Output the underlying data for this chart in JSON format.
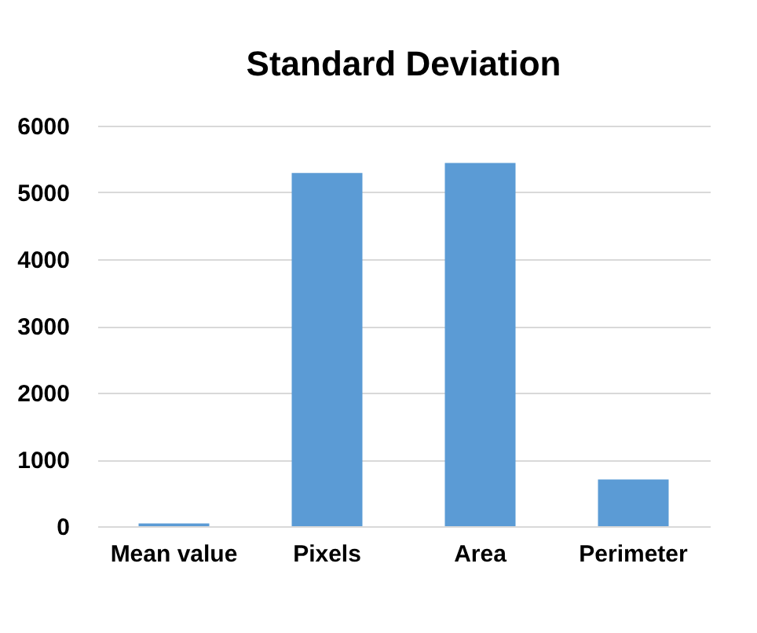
{
  "chart_data": {
    "type": "bar",
    "title": "Standard Deviation",
    "categories": [
      "Mean value",
      "Pixels",
      "Area",
      "Perimeter"
    ],
    "values": [
      40,
      5290,
      5440,
      700
    ],
    "color": "#5b9bd5",
    "ylim": [
      0,
      6000
    ],
    "yticks": [
      0,
      1000,
      2000,
      3000,
      4000,
      5000,
      6000
    ],
    "grid": "y"
  }
}
